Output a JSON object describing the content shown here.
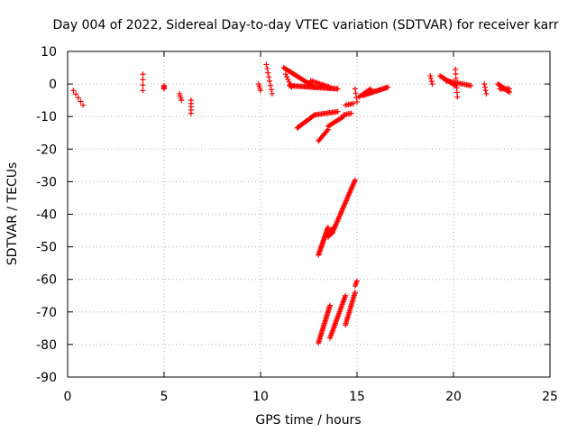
{
  "chart_data": {
    "type": "scatter",
    "title": "Day 004 of 2022, Sidereal Day-to-day VTEC variation (SDTVAR) for receiver karr",
    "xlabel": "GPS time / hours",
    "ylabel": "SDTVAR / TECUs",
    "xlim": [
      0,
      25
    ],
    "ylim": [
      -90,
      10
    ],
    "xticks": [
      0,
      5,
      10,
      15,
      20,
      25
    ],
    "yticks": [
      -90,
      -80,
      -70,
      -60,
      -50,
      -40,
      -30,
      -20,
      -10,
      0,
      10
    ],
    "grid": true,
    "marker": "+",
    "color": "#ff0000",
    "segments": [
      {
        "x0": 0.3,
        "y0": -2,
        "x1": 0.8,
        "y1": -6.5,
        "n": 5
      },
      {
        "x0": 3.9,
        "y0": 3,
        "x1": 3.9,
        "y1": -2,
        "n": 4
      },
      {
        "x0": 5.0,
        "y0": -0.5,
        "x1": 5.0,
        "y1": -1.5,
        "n": 4
      },
      {
        "x0": 5.8,
        "y0": -3,
        "x1": 5.9,
        "y1": -5,
        "n": 4
      },
      {
        "x0": 6.4,
        "y0": -5,
        "x1": 6.4,
        "y1": -9,
        "n": 5
      },
      {
        "x0": 9.9,
        "y0": 0,
        "x1": 10.0,
        "y1": -2,
        "n": 4
      },
      {
        "x0": 10.3,
        "y0": 6,
        "x1": 10.6,
        "y1": -3,
        "n": 8
      },
      {
        "x0": 11.2,
        "y0": 5,
        "x1": 12.8,
        "y1": -1,
        "n": 28
      },
      {
        "x0": 11.3,
        "y0": 3,
        "x1": 11.6,
        "y1": -1,
        "n": 6
      },
      {
        "x0": 11.5,
        "y0": -0.5,
        "x1": 14.0,
        "y1": -1.5,
        "n": 40
      },
      {
        "x0": 12.6,
        "y0": 1,
        "x1": 13.6,
        "y1": -1,
        "n": 14
      },
      {
        "x0": 11.9,
        "y0": -13.5,
        "x1": 12.8,
        "y1": -9.5,
        "n": 18
      },
      {
        "x0": 12.8,
        "y0": -9.5,
        "x1": 14.0,
        "y1": -8.5,
        "n": 18
      },
      {
        "x0": 13.0,
        "y0": -17.5,
        "x1": 13.5,
        "y1": -14,
        "n": 10
      },
      {
        "x0": 13.5,
        "y0": -13,
        "x1": 14.3,
        "y1": -10,
        "n": 14
      },
      {
        "x0": 14.3,
        "y0": -9.5,
        "x1": 14.7,
        "y1": -9,
        "n": 6
      },
      {
        "x0": 14.4,
        "y0": -6.5,
        "x1": 14.8,
        "y1": -6,
        "n": 6
      },
      {
        "x0": 14.9,
        "y0": -1.5,
        "x1": 15.0,
        "y1": -5.5,
        "n": 4
      },
      {
        "x0": 15.1,
        "y0": -4,
        "x1": 15.7,
        "y1": -1.5,
        "n": 10
      },
      {
        "x0": 15.3,
        "y0": -3.5,
        "x1": 16.6,
        "y1": -1,
        "n": 24
      },
      {
        "x0": 13.0,
        "y0": -52.5,
        "x1": 13.5,
        "y1": -44,
        "n": 24
      },
      {
        "x0": 13.5,
        "y0": -47,
        "x1": 13.8,
        "y1": -44,
        "n": 10
      },
      {
        "x0": 13.7,
        "y0": -46,
        "x1": 14.9,
        "y1": -29.5,
        "n": 40
      },
      {
        "x0": 13.0,
        "y0": -79.5,
        "x1": 13.6,
        "y1": -68,
        "n": 28
      },
      {
        "x0": 13.6,
        "y0": -78,
        "x1": 14.4,
        "y1": -65,
        "n": 30
      },
      {
        "x0": 14.4,
        "y0": -74,
        "x1": 14.9,
        "y1": -64,
        "n": 22
      },
      {
        "x0": 14.9,
        "y0": -62,
        "x1": 15.0,
        "y1": -60.5,
        "n": 4
      },
      {
        "x0": 18.8,
        "y0": 2.5,
        "x1": 18.9,
        "y1": 0,
        "n": 4
      },
      {
        "x0": 19.3,
        "y0": 2.5,
        "x1": 20.1,
        "y1": -0.5,
        "n": 14
      },
      {
        "x0": 19.6,
        "y0": 1,
        "x1": 20.9,
        "y1": -0.5,
        "n": 18
      },
      {
        "x0": 20.1,
        "y0": 4.5,
        "x1": 20.2,
        "y1": -4,
        "n": 7
      },
      {
        "x0": 21.6,
        "y0": 0,
        "x1": 21.7,
        "y1": -3,
        "n": 4
      },
      {
        "x0": 22.3,
        "y0": 0,
        "x1": 22.9,
        "y1": -2.5,
        "n": 14
      },
      {
        "x0": 22.4,
        "y0": -1.5,
        "x1": 22.9,
        "y1": -1.5,
        "n": 8
      }
    ]
  }
}
